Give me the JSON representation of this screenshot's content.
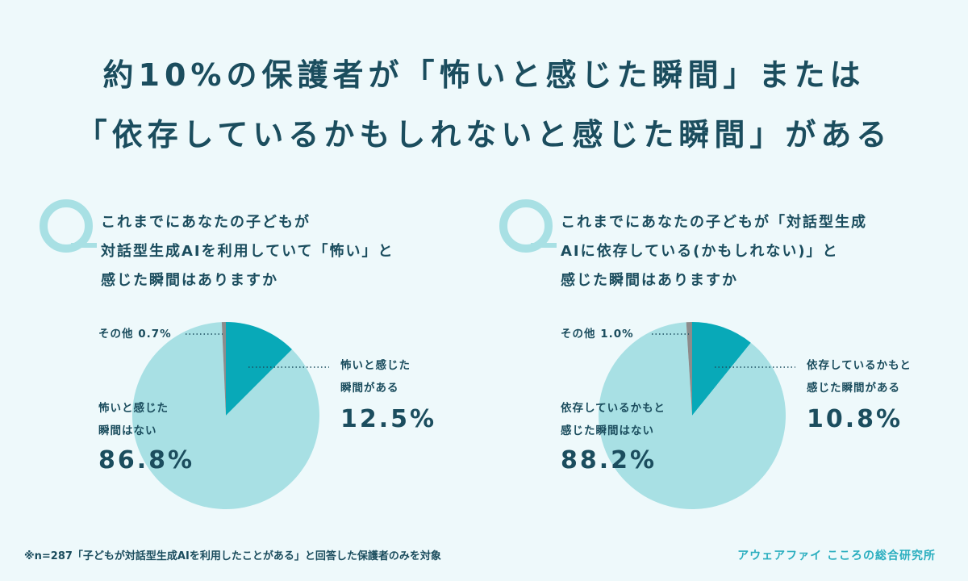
{
  "title": {
    "line1": "約10%の保護者が「怖いと感じた瞬間」または",
    "line2": "「依存しているかもしれないと感じた瞬間」がある"
  },
  "colors": {
    "background": "#eef9fb",
    "dark": "#08a9b8",
    "light": "#a8e0e4",
    "other": "#8c8c8c",
    "text": "#1b4d5e",
    "accent": "#2aaebf"
  },
  "chart_data": [
    {
      "type": "pie",
      "question": [
        "これまでにあなたの子どもが",
        "対話型生成AIを利用していて「怖い」と",
        "感じた瞬間はありますか"
      ],
      "slices": [
        {
          "label": [
            "怖いと感じた",
            "瞬間がある"
          ],
          "value": 12.5,
          "display": "12.5%",
          "color": "#08a9b8"
        },
        {
          "label": [
            "怖いと感じた",
            "瞬間はない"
          ],
          "value": 86.8,
          "display": "86.8%",
          "color": "#a8e0e4"
        },
        {
          "label": [
            "その他 0.7%"
          ],
          "value": 0.7,
          "display": "",
          "color": "#8c8c8c"
        }
      ]
    },
    {
      "type": "pie",
      "question": [
        "これまでにあなたの子どもが「対話型生成",
        "AIに依存している(かもしれない)」と",
        "感じた瞬間はありますか"
      ],
      "slices": [
        {
          "label": [
            "依存しているかもと",
            "感じた瞬間がある"
          ],
          "value": 10.8,
          "display": "10.8%",
          "color": "#08a9b8"
        },
        {
          "label": [
            "依存しているかもと",
            "感じた瞬間はない"
          ],
          "value": 88.2,
          "display": "88.2%",
          "color": "#a8e0e4"
        },
        {
          "label": [
            "その他 1.0%"
          ],
          "value": 1.0,
          "display": "",
          "color": "#8c8c8c"
        }
      ]
    }
  ],
  "footer": {
    "note": "※n=287「子どもが対話型生成AIを利用したことがある」と回答した保護者のみを対象",
    "source": "アウェアファイ こころの総合研究所"
  }
}
